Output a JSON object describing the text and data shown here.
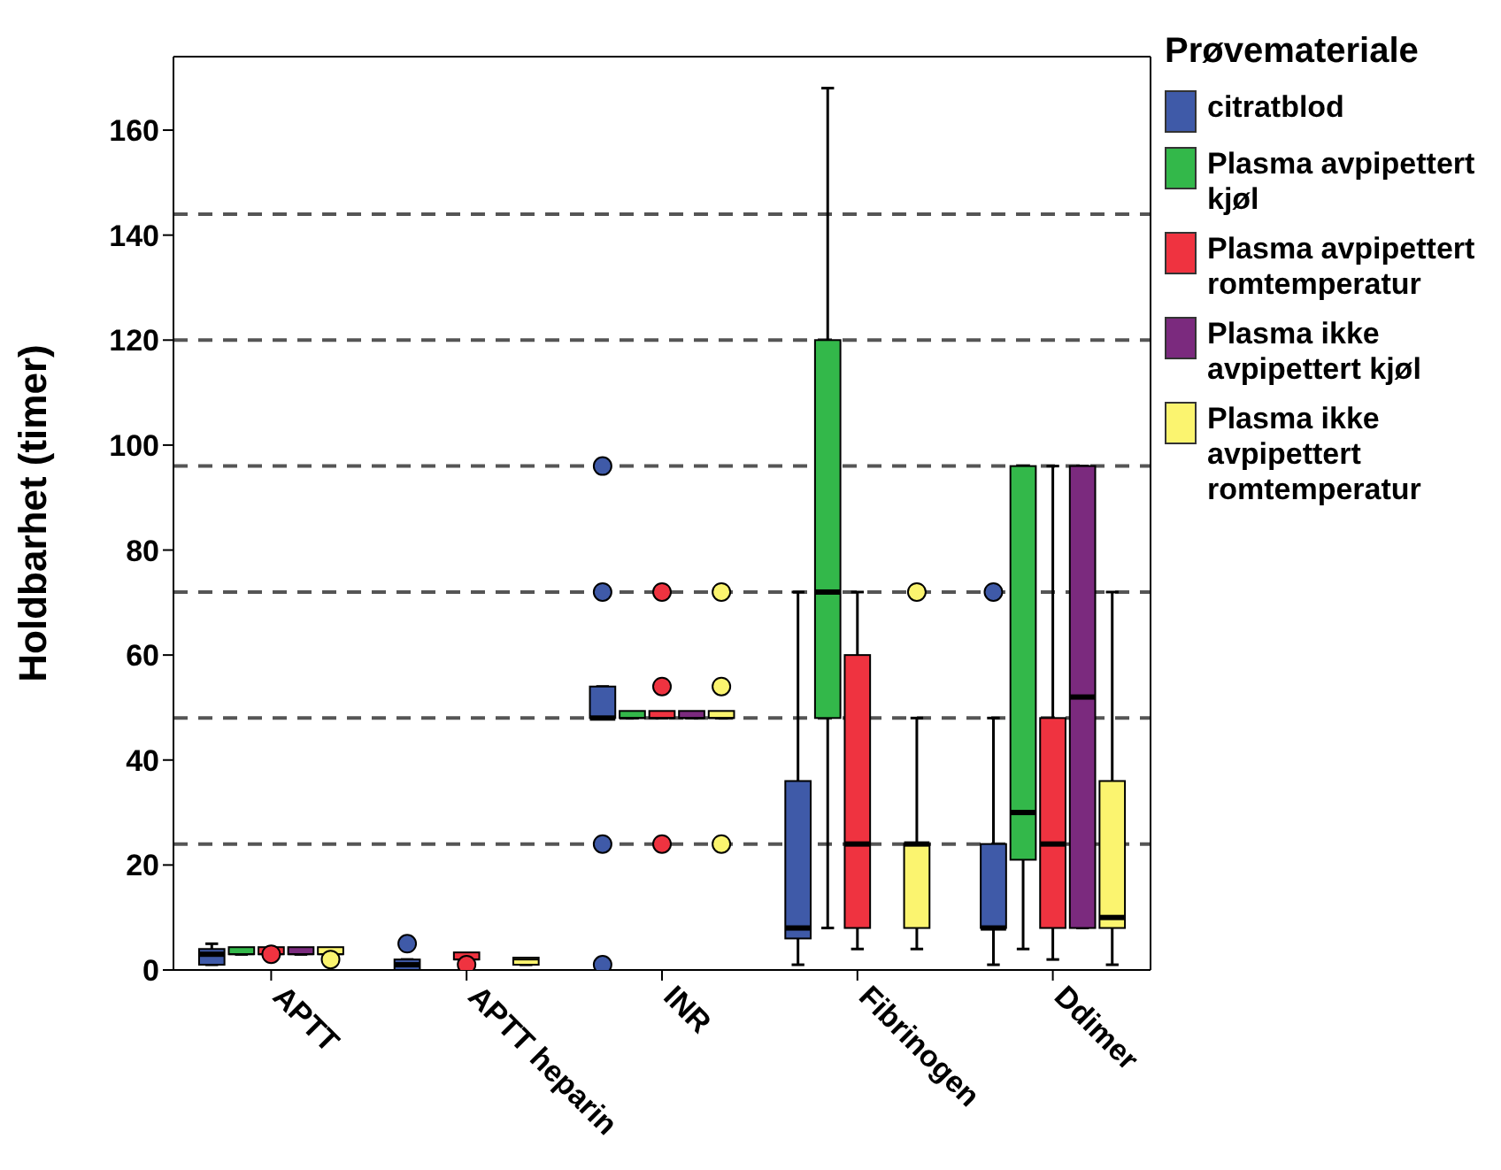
{
  "chart_data": {
    "type": "box",
    "ylabel": "Holdbarhet (timer)",
    "legend_title": "Prøvemateriale",
    "legend": "right",
    "grid": false,
    "categories": [
      "APTT",
      "APTT heparin",
      "INR",
      "Fibrinogen",
      "Ddimer"
    ],
    "ylim": [
      0,
      174
    ],
    "yticks": [
      0,
      20,
      40,
      60,
      80,
      100,
      120,
      140,
      160
    ],
    "ref_lines": [
      {
        "axis": "y",
        "value": 24,
        "color": "#555555",
        "line_style": "dashed"
      },
      {
        "axis": "y",
        "value": 48,
        "color": "#555555",
        "line_style": "dashed"
      },
      {
        "axis": "y",
        "value": 72,
        "color": "#555555",
        "line_style": "dashed"
      },
      {
        "axis": "y",
        "value": 96,
        "color": "#555555",
        "line_style": "dashed"
      },
      {
        "axis": "y",
        "value": 120,
        "color": "#555555",
        "line_style": "dashed"
      },
      {
        "axis": "y",
        "value": 144,
        "color": "#555555",
        "line_style": "dashed"
      }
    ],
    "series": [
      {
        "name": "citratblod",
        "color": "#3f5aa8",
        "boxes": [
          {
            "low": 1,
            "q1": 1,
            "median": 3,
            "q3": 4,
            "high": 5
          },
          {
            "low": 0,
            "q1": 0,
            "median": 1,
            "q3": 2,
            "high": 2,
            "outliers": [
              5
            ]
          },
          {
            "low": 48,
            "q1": 48,
            "median": 48,
            "q3": 54,
            "high": 54,
            "outliers": [
              72,
              96,
              24,
              1
            ]
          },
          {
            "low": 1,
            "q1": 6,
            "median": 8,
            "q3": 36,
            "high": 72
          },
          {
            "low": 1,
            "q1": 8,
            "median": 8,
            "q3": 24,
            "high": 48,
            "outliers": [
              72
            ]
          }
        ]
      },
      {
        "name": "Plasma avpipettert kjøl",
        "color": "#33b84a",
        "boxes": [
          {
            "low": 3,
            "q1": 3,
            "median": 3,
            "q3": 3,
            "high": 3
          },
          null,
          {
            "low": 48,
            "q1": 48,
            "median": 48,
            "q3": 48,
            "high": 48
          },
          {
            "low": 8,
            "q1": 48,
            "median": 72,
            "q3": 120,
            "high": 168
          },
          {
            "low": 4,
            "q1": 21,
            "median": 30,
            "q3": 96,
            "high": 96
          }
        ]
      },
      {
        "name": "Plasma avpipettert romtemperatur",
        "color": "#ef3340",
        "boxes": [
          {
            "low": 3,
            "q1": 3,
            "median": 3,
            "q3": 4,
            "high": 4,
            "outliers": [
              3
            ]
          },
          {
            "low": 2,
            "q1": 2,
            "median": 2,
            "q3": 2,
            "high": 2,
            "outliers": [
              1
            ]
          },
          {
            "low": 48,
            "q1": 48,
            "median": 48,
            "q3": 48,
            "high": 48,
            "outliers": [
              72,
              54,
              24
            ]
          },
          {
            "low": 4,
            "q1": 8,
            "median": 24,
            "q3": 60,
            "high": 72
          },
          {
            "low": 2,
            "q1": 8,
            "median": 24,
            "q3": 48,
            "high": 96
          }
        ]
      },
      {
        "name": "Plasma ikke avpipettert kjøl",
        "color": "#7b2a7e",
        "boxes": [
          {
            "low": 3,
            "q1": 3,
            "median": 3,
            "q3": 3,
            "high": 3
          },
          null,
          {
            "low": 48,
            "q1": 48,
            "median": 48,
            "q3": 48,
            "high": 48
          },
          null,
          {
            "low": 8,
            "q1": 8,
            "median": 52,
            "q3": 96,
            "high": 96
          }
        ]
      },
      {
        "name": "Plasma ikke avpipettert romtemperatur",
        "color": "#fbf46f",
        "boxes": [
          {
            "low": 3,
            "q1": 3,
            "median": 3,
            "q3": 4,
            "high": 4,
            "outliers": [
              2
            ]
          },
          {
            "low": 1,
            "q1": 1,
            "median": 2,
            "q3": 2,
            "high": 2
          },
          {
            "low": 48,
            "q1": 48,
            "median": 48,
            "q3": 48,
            "high": 48,
            "outliers": [
              72,
              54,
              24
            ]
          },
          {
            "low": 4,
            "q1": 8,
            "median": 24,
            "q3": 24,
            "high": 48,
            "outliers": [
              72
            ]
          },
          {
            "low": 1,
            "q1": 8,
            "median": 10,
            "q3": 36,
            "high": 72
          }
        ]
      }
    ]
  }
}
